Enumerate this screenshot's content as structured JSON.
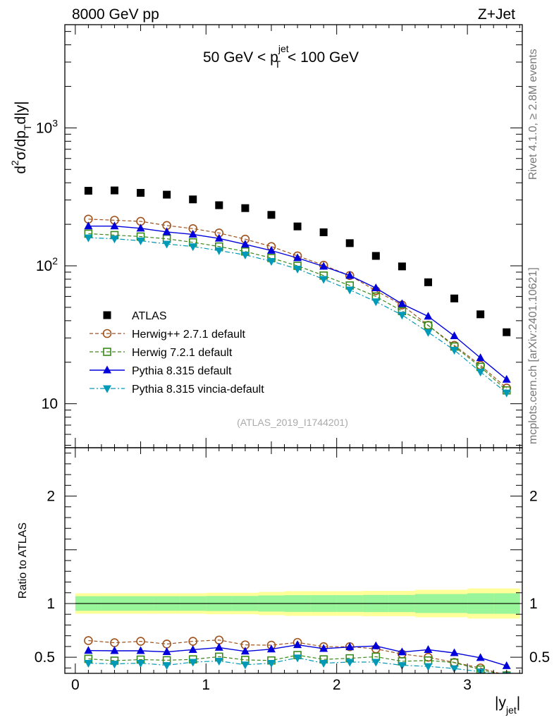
{
  "header": {
    "left": "8000 GeV pp",
    "right": "Z+Jet"
  },
  "side_text": {
    "top": "Rivet 4.1.0, ≥ 2.8M events",
    "bottom": "mcplots.cern.ch [arXiv:2401.10621]"
  },
  "main_label": {
    "prefix": "50 GeV < p",
    "sup": "jet",
    "sub": "T",
    "suffix": " < 100 GeV"
  },
  "analysis_tag": "(ATLAS_2019_I1744201)",
  "y_axis_main": {
    "d": "d",
    "two": "2",
    "sigma": "σ/dp",
    "T": "T",
    "rest": "d|y|"
  },
  "y_axis_ratio": "Ratio to ATLAS",
  "x_axis": {
    "pre": "|y",
    "sub": "jet",
    "post": "|"
  },
  "chart_data": [
    {
      "type": "scatter",
      "panel": "main",
      "yscale": "log",
      "xlim": [
        -0.08,
        3.42
      ],
      "ylim": [
        4.8,
        5600
      ],
      "yticks": [
        10,
        100,
        1000
      ],
      "yticklabels": [
        {
          "base": "10",
          "exp": ""
        },
        {
          "base": "10",
          "exp": "2"
        },
        {
          "base": "10",
          "exp": "3"
        }
      ],
      "x": [
        0.1,
        0.3,
        0.5,
        0.7,
        0.9,
        1.1,
        1.3,
        1.5,
        1.7,
        1.9,
        2.1,
        2.3,
        2.5,
        2.7,
        2.9,
        3.1,
        3.3
      ],
      "series": [
        {
          "name": "ATLAS",
          "color": "#000000",
          "marker": "square-filled",
          "line": "none",
          "values": [
            350,
            352,
            338,
            328,
            303,
            275,
            262,
            234,
            193,
            175,
            146,
            118,
            99,
            76,
            58,
            44.5,
            33
          ]
        },
        {
          "name": "Herwig++ 2.7.1 default",
          "color": "#a0521d",
          "marker": "circle-open",
          "line": "dashed",
          "values": [
            218,
            214,
            210,
            196,
            186,
            173,
            156,
            138,
            118,
            101,
            85,
            66,
            52,
            37,
            26.5,
            19,
            13
          ]
        },
        {
          "name": "Herwig 7.2.1 default",
          "color": "#3a8a1a",
          "marker": "square-open",
          "line": "dashed",
          "values": [
            171,
            167,
            163,
            157,
            148,
            138,
            127,
            114,
            100,
            85,
            72,
            60,
            47,
            37,
            26,
            18.5,
            12.5
          ]
        },
        {
          "name": "Pythia 8.315 default",
          "color": "#0000dd",
          "marker": "triangle-up-filled",
          "line": "solid",
          "values": [
            194,
            194,
            187,
            176,
            169,
            158,
            143,
            129,
            114,
            99,
            85,
            69,
            53,
            43,
            31,
            21.5,
            15
          ]
        },
        {
          "name": "Pythia 8.315 vincia-default",
          "color": "#0099b8",
          "marker": "triangle-down-filled",
          "line": "dashdot",
          "values": [
            160,
            157,
            152,
            144,
            138,
            129,
            120,
            108,
            95,
            80,
            67,
            55,
            44,
            33,
            24.5,
            17,
            12
          ]
        }
      ]
    },
    {
      "type": "line",
      "panel": "ratio",
      "xlabel": "|y_jet|",
      "ylabel": "Ratio to ATLAS",
      "xlim": [
        -0.08,
        3.42
      ],
      "ylim": [
        0.35,
        2.45
      ],
      "xticks": [
        0,
        1,
        2,
        3
      ],
      "yticks": [
        0.5,
        1,
        2
      ],
      "yticklabels": [
        "0.5",
        "1",
        "2"
      ],
      "x": [
        0.1,
        0.3,
        0.5,
        0.7,
        0.9,
        1.1,
        1.3,
        1.5,
        1.7,
        1.9,
        2.1,
        2.3,
        2.5,
        2.7,
        2.9,
        3.1,
        3.3
      ],
      "x_edges": [
        0,
        0.2,
        0.4,
        0.6,
        0.8,
        1.0,
        1.2,
        1.4,
        1.6,
        1.8,
        2.0,
        2.2,
        2.4,
        2.6,
        2.8,
        3.0,
        3.2,
        3.4
      ],
      "band_inner": [
        0.068,
        0.068,
        0.068,
        0.068,
        0.068,
        0.07,
        0.07,
        0.075,
        0.078,
        0.078,
        0.078,
        0.08,
        0.08,
        0.088,
        0.088,
        0.095,
        0.095
      ],
      "band_outer": [
        0.095,
        0.095,
        0.095,
        0.095,
        0.095,
        0.1,
        0.1,
        0.108,
        0.115,
        0.115,
        0.115,
        0.118,
        0.118,
        0.128,
        0.128,
        0.14,
        0.14
      ],
      "reference_value": 1,
      "band_colors": {
        "inner": "#99f599",
        "outer": "#ffff99"
      },
      "series": [
        {
          "name": "Herwig++ 2.7.1 default",
          "color": "#a0521d",
          "marker": "circle-open",
          "line": "dashed",
          "values": [
            0.655,
            0.635,
            0.648,
            0.623,
            0.648,
            0.66,
            0.615,
            0.612,
            0.638,
            0.598,
            0.598,
            0.578,
            0.53,
            0.5,
            0.452,
            0.4,
            0.33
          ]
        },
        {
          "name": "Herwig 7.2.1 default",
          "color": "#3a8a1a",
          "marker": "square-open",
          "line": "dashed",
          "values": [
            0.485,
            0.468,
            0.478,
            0.472,
            0.48,
            0.505,
            0.475,
            0.47,
            0.52,
            0.48,
            0.49,
            0.505,
            0.462,
            0.47,
            0.45,
            0.385,
            0.33
          ]
        },
        {
          "name": "Pythia 8.315 default",
          "color": "#0000dd",
          "marker": "triangle-up-filled",
          "line": "solid",
          "values": [
            0.562,
            0.56,
            0.56,
            0.55,
            0.57,
            0.59,
            0.555,
            0.575,
            0.615,
            0.58,
            0.595,
            0.605,
            0.548,
            0.57,
            0.54,
            0.495,
            0.42
          ]
        },
        {
          "name": "Pythia 8.315 vincia-default",
          "color": "#0099b8",
          "marker": "triangle-down-filled",
          "line": "dashdot",
          "values": [
            0.445,
            0.438,
            0.445,
            0.425,
            0.455,
            0.465,
            0.43,
            0.445,
            0.495,
            0.445,
            0.455,
            0.455,
            0.425,
            0.415,
            0.395,
            0.365,
            0.33
          ]
        }
      ]
    }
  ]
}
